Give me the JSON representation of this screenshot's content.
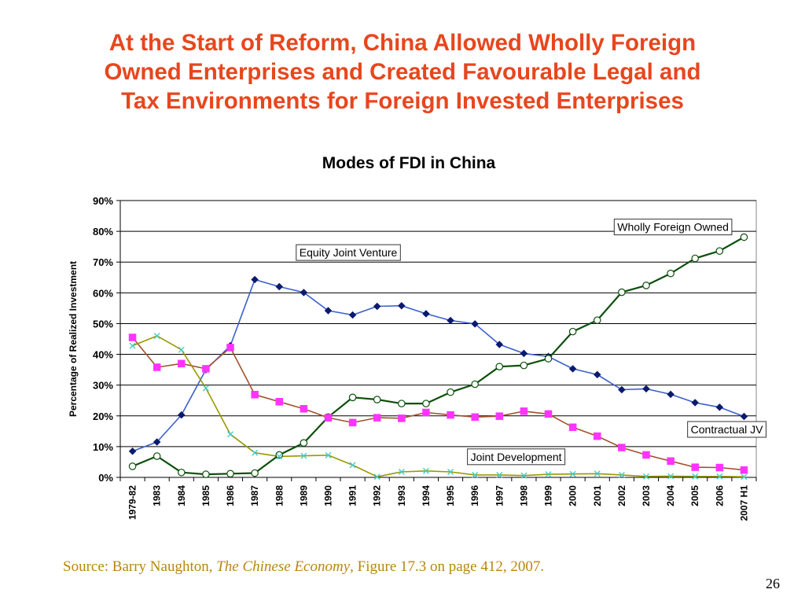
{
  "slide": {
    "title_lines": [
      "At the Start of Reform, China Allowed Wholly Foreign",
      "Owned Enterprises and Created Favourable Legal and",
      "Tax Environments for Foreign Invested Enterprises"
    ],
    "title_color": "#e8461e",
    "source_prefix": "Source: Barry Naughton, ",
    "source_book": "The Chinese Economy",
    "source_suffix": ", Figure 17.3 on page 412, 2007.",
    "page_number": "26"
  },
  "chart_data": {
    "type": "line",
    "title": "Modes of FDI in China",
    "ylabel": "Percentage of Realized Investment",
    "xlabel": "",
    "ylim": [
      0,
      90
    ],
    "yticks": [
      "0%",
      "10%",
      "20%",
      "30%",
      "40%",
      "50%",
      "60%",
      "70%",
      "80%",
      "90%"
    ],
    "grid": true,
    "categories": [
      "1979-82",
      "1983",
      "1984",
      "1985",
      "1986",
      "1987",
      "1988",
      "1989",
      "1990",
      "1991",
      "1992",
      "1993",
      "1994",
      "1995",
      "1996",
      "1997",
      "1998",
      "1999",
      "2000",
      "2001",
      "2002",
      "2003",
      "2004",
      "2005",
      "2006",
      "2007 H1"
    ],
    "series": [
      {
        "name": "Equity Joint Venture",
        "color": "#3a5fcd",
        "marker": "diamond",
        "values": [
          8.5,
          11.5,
          20.3,
          35.0,
          42.8,
          64.3,
          62.0,
          60.1,
          54.2,
          52.8,
          55.6,
          55.8,
          53.2,
          51.0,
          49.9,
          43.2,
          40.3,
          39.3,
          35.3,
          33.4,
          28.5,
          28.8,
          27.0,
          24.3,
          22.8,
          19.8
        ]
      },
      {
        "name": "Wholly Foreign Owned",
        "color": "#0b4f0b",
        "marker": "circle",
        "values": [
          3.6,
          6.9,
          1.6,
          1.0,
          1.2,
          1.4,
          7.3,
          11.2,
          19.6,
          26.0,
          25.3,
          24.0,
          24.0,
          27.7,
          30.3,
          36.0,
          36.4,
          38.6,
          47.4,
          51.1,
          60.2,
          62.4,
          66.3,
          71.2,
          73.6,
          78.1
        ]
      },
      {
        "name": "Contractual JV",
        "color": "#a0522d",
        "marker": "square",
        "markerColor": "#ff33ff",
        "values": [
          45.5,
          35.8,
          37.0,
          35.3,
          42.2,
          26.9,
          24.6,
          22.3,
          19.4,
          17.8,
          19.4,
          19.2,
          21.1,
          20.3,
          19.6,
          19.9,
          21.5,
          20.6,
          16.3,
          13.4,
          9.7,
          7.3,
          5.3,
          3.3,
          3.2,
          2.4
        ]
      },
      {
        "name": "Joint Development",
        "color": "#999900",
        "marker": "x",
        "markerColor": "#44cccc",
        "values": [
          42.8,
          46.0,
          41.5,
          29.0,
          14.0,
          8.0,
          6.8,
          7.0,
          7.2,
          4.0,
          0.2,
          1.8,
          2.1,
          1.8,
          0.8,
          0.8,
          0.6,
          1.0,
          1.1,
          1.2,
          0.8,
          0.3,
          0.4,
          0.3,
          0.3,
          0.2
        ]
      }
    ],
    "annotations": [
      {
        "text": "Wholly Foreign Owned",
        "series": "Wholly Foreign Owned",
        "anchor_category": "2002",
        "anchor_value": 81.4
      },
      {
        "text": "Equity Joint Venture",
        "series": "Equity Joint Venture",
        "anchor_category": "1989",
        "anchor_value": 73.1
      },
      {
        "text": "Contractual JV",
        "series": "Contractual JV",
        "anchor_category": "2005",
        "anchor_value": 15.6
      },
      {
        "text": "Joint Development",
        "series": "Joint Development",
        "anchor_category": "1996",
        "anchor_value": 6.7
      }
    ]
  }
}
